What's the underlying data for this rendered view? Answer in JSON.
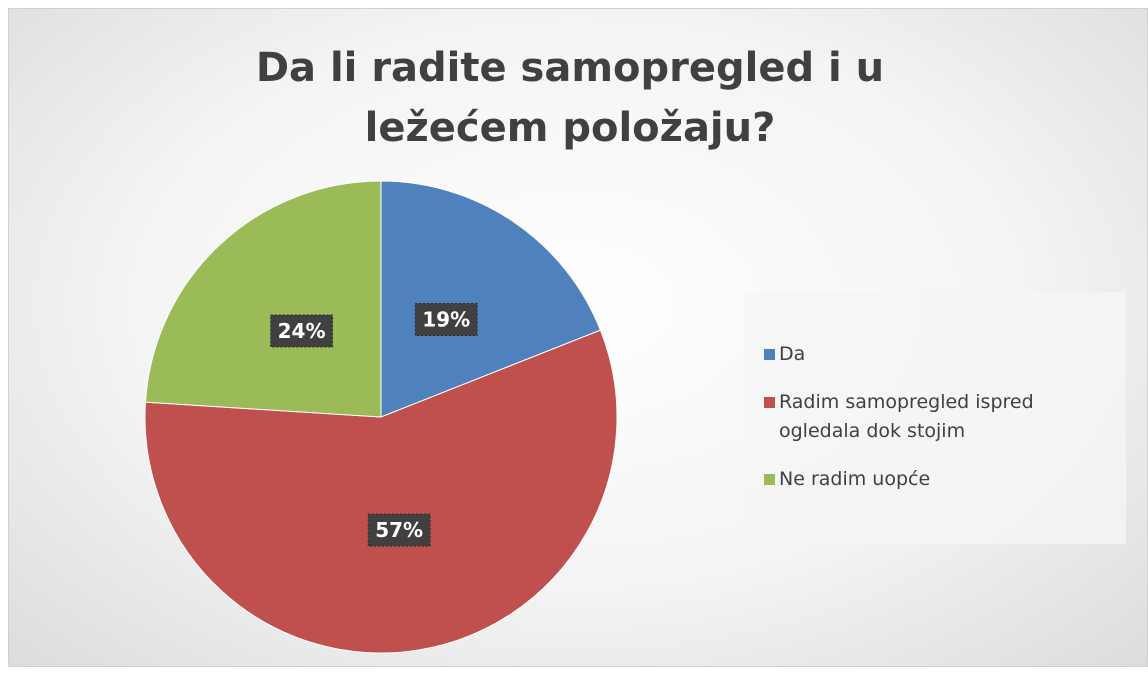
{
  "chart_data": {
    "type": "pie",
    "title": "Da li radite samopregled i u ležećem položaju?",
    "categories": [
      "Da",
      "Radim samopregled ispred ogledala dok stojim",
      "Ne radim uopće"
    ],
    "values": [
      19,
      57,
      24
    ],
    "value_labels": [
      "19%",
      "57%",
      "24%"
    ],
    "colors": [
      "#4f81bd",
      "#c0504d",
      "#9bbb59"
    ],
    "legend": "right"
  }
}
